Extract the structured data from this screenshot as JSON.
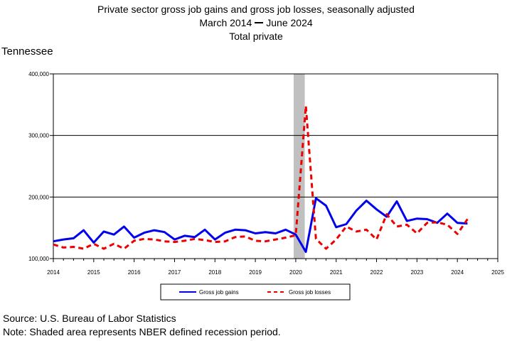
{
  "header": {
    "title": "Private sector gross job gains and gross job losses, seasonally adjusted",
    "period_start": "March 2014",
    "period_end": "June 2024",
    "subtitle": "Total private",
    "state": "Tennessee"
  },
  "footer": {
    "source": "Source: U.S. Bureau of Labor Statistics",
    "note": "Note: Shaded area represents NBER defined recession period."
  },
  "colors": {
    "gains": "#0000ee",
    "losses": "#ee0000",
    "recession": "#c0c0c0",
    "grid": "#000000"
  },
  "chart_data": {
    "type": "line",
    "ylim": [
      100000,
      400000
    ],
    "xlim": [
      2014,
      2025
    ],
    "y_ticks": [
      100000,
      200000,
      300000,
      400000
    ],
    "y_tick_labels": [
      "100,000",
      "200,000",
      "300,000",
      "400,000"
    ],
    "x_ticks": [
      2014,
      2015,
      2016,
      2017,
      2018,
      2019,
      2020,
      2021,
      2022,
      2023,
      2024,
      2025
    ],
    "x_tick_labels": [
      "2014",
      "2015",
      "2016",
      "2017",
      "2018",
      "2019",
      "2020",
      "2021",
      "2022",
      "2023",
      "2024",
      "2025"
    ],
    "grid": "horizontal",
    "legend_position": "bottom",
    "recession": [
      2020.0,
      2020.17
    ],
    "x": [
      2014.0,
      2014.25,
      2014.5,
      2014.75,
      2015.0,
      2015.25,
      2015.5,
      2015.75,
      2016.0,
      2016.25,
      2016.5,
      2016.75,
      2017.0,
      2017.25,
      2017.5,
      2017.75,
      2018.0,
      2018.25,
      2018.5,
      2018.75,
      2019.0,
      2019.25,
      2019.5,
      2019.75,
      2020.0,
      2020.25,
      2020.5,
      2020.75,
      2021.0,
      2021.25,
      2021.5,
      2021.75,
      2022.0,
      2022.25,
      2022.5,
      2022.75,
      2023.0,
      2023.25,
      2023.5,
      2023.75,
      2024.0,
      2024.25
    ],
    "series": [
      {
        "name": "Gross job gains",
        "values": [
          128000,
          131000,
          133000,
          146000,
          126000,
          144000,
          139000,
          152000,
          134000,
          142000,
          146000,
          143000,
          131000,
          137000,
          135000,
          147000,
          131000,
          142000,
          147000,
          146000,
          141000,
          143000,
          141000,
          147000,
          139000,
          111000,
          198000,
          186000,
          151000,
          156000,
          178000,
          194000,
          180000,
          168000,
          193000,
          161000,
          165000,
          164000,
          158000,
          173000,
          158000,
          157000
        ]
      },
      {
        "name": "Gross job losses",
        "values": [
          123000,
          118000,
          119000,
          116000,
          124000,
          116000,
          124000,
          116000,
          129000,
          132000,
          131000,
          128000,
          127000,
          129000,
          132000,
          130000,
          127000,
          128000,
          135000,
          136000,
          129000,
          128000,
          131000,
          134000,
          138000,
          348000,
          132000,
          116000,
          131000,
          152000,
          144000,
          147000,
          131000,
          172000,
          152000,
          155000,
          141000,
          158000,
          159000,
          155000,
          140000,
          164000
        ]
      }
    ]
  }
}
